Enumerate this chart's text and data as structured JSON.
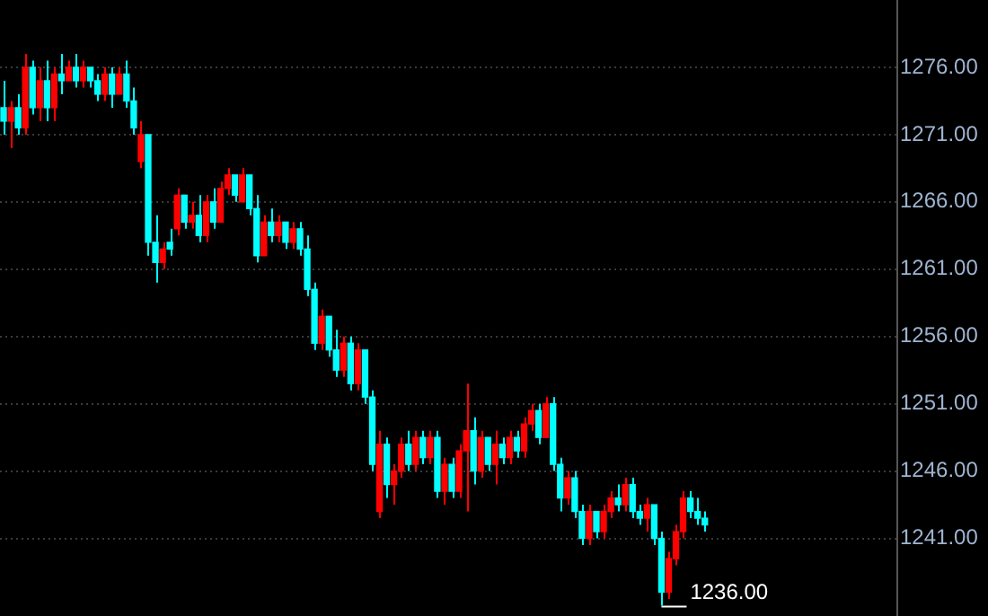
{
  "chart_data": {
    "type": "candlestick",
    "categories": [
      null,
      null,
      null,
      null,
      null,
      null,
      null,
      null,
      null,
      null,
      null,
      null,
      null,
      null,
      null,
      null,
      null,
      null,
      null,
      null,
      null,
      null,
      null,
      null,
      null,
      null,
      null,
      null,
      null,
      null,
      null,
      null,
      null,
      null,
      null,
      null,
      null,
      null,
      null,
      null,
      null,
      null,
      null,
      null,
      null,
      null,
      null,
      null,
      null,
      null,
      null,
      null,
      null,
      null,
      null,
      null,
      null,
      null,
      null,
      null,
      null,
      null,
      null,
      null,
      null,
      null,
      null,
      null,
      null,
      null,
      null,
      null,
      null,
      null,
      null,
      null,
      null,
      null,
      null,
      null,
      null,
      null,
      null,
      null,
      null,
      null,
      null,
      null,
      null,
      null,
      null,
      null,
      null,
      null,
      null,
      null,
      null,
      null,
      null,
      null,
      null,
      null,
      null,
      null,
      null,
      null,
      null,
      null,
      null,
      null,
      null,
      null,
      null,
      null,
      null,
      null,
      null,
      null,
      null,
      null,
      null,
      null,
      null,
      null
    ],
    "ohlc": [
      [
        1273,
        1275,
        1271,
        1272
      ],
      [
        1272,
        1273.5,
        1270,
        1273
      ],
      [
        1273,
        1274,
        1271,
        1271.5
      ],
      [
        1271.5,
        1277,
        1271,
        1276
      ],
      [
        1276,
        1276.5,
        1272.5,
        1273
      ],
      [
        1273,
        1276,
        1272,
        1275
      ],
      [
        1275,
        1276.5,
        1272,
        1273
      ],
      [
        1273,
        1276,
        1272,
        1275.5
      ],
      [
        1275.5,
        1277,
        1274,
        1275
      ],
      [
        1275,
        1276.5,
        1275,
        1276
      ],
      [
        1276,
        1277,
        1274.5,
        1275
      ],
      [
        1275,
        1276.5,
        1274.5,
        1276
      ],
      [
        1276,
        1276,
        1274.5,
        1275
      ],
      [
        1275,
        1275.5,
        1273.5,
        1274
      ],
      [
        1274,
        1276,
        1273.5,
        1275.5
      ],
      [
        1275.5,
        1276,
        1273,
        1274
      ],
      [
        1274,
        1276,
        1274,
        1275.5
      ],
      [
        1275.5,
        1276.5,
        1273,
        1273.5
      ],
      [
        1273.5,
        1274.5,
        1271,
        1271.5
      ],
      [
        1269,
        1272,
        1268.5,
        1271
      ],
      [
        1271,
        1271,
        1262,
        1263
      ],
      [
        1263,
        1265,
        1260,
        1261.5
      ],
      [
        1261.5,
        1263,
        1261,
        1262.5
      ],
      [
        1263,
        1264,
        1262,
        1262.5
      ],
      [
        1264,
        1267,
        1263.5,
        1266.5
      ],
      [
        1266.5,
        1266.5,
        1264,
        1264.5
      ],
      [
        1264.5,
        1266,
        1264,
        1265
      ],
      [
        1265,
        1266.5,
        1263,
        1263.5
      ],
      [
        1263.5,
        1266.5,
        1263,
        1266
      ],
      [
        1266,
        1267,
        1264,
        1264.5
      ],
      [
        1264.5,
        1267.5,
        1264.5,
        1267
      ],
      [
        1267,
        1268.5,
        1266.5,
        1268
      ],
      [
        1268,
        1268,
        1266,
        1266.5
      ],
      [
        1266,
        1268.5,
        1266,
        1268
      ],
      [
        1268,
        1268,
        1265,
        1265.5
      ],
      [
        1265.5,
        1266.5,
        1261.5,
        1262
      ],
      [
        1262,
        1265,
        1262,
        1264.5
      ],
      [
        1264.5,
        1265.5,
        1263,
        1263.5
      ],
      [
        1263.5,
        1265,
        1263,
        1264.5
      ],
      [
        1264.5,
        1264.5,
        1262.5,
        1263
      ],
      [
        1263,
        1264.5,
        1262.5,
        1264
      ],
      [
        1264,
        1264.5,
        1262,
        1262.5
      ],
      [
        1262.5,
        1263.5,
        1259,
        1259.5
      ],
      [
        1259.5,
        1260,
        1255,
        1255.5
      ],
      [
        1255.5,
        1258,
        1255,
        1257.5
      ],
      [
        1257.5,
        1257.5,
        1254.5,
        1255
      ],
      [
        1255,
        1256.5,
        1253,
        1253.5
      ],
      [
        1253.5,
        1256,
        1253,
        1255.5
      ],
      [
        1255.5,
        1256,
        1252,
        1252.5
      ],
      [
        1252.5,
        1255.5,
        1252,
        1255
      ],
      [
        1255,
        1255,
        1251,
        1251.5
      ],
      [
        1251.5,
        1252,
        1246,
        1246.5
      ],
      [
        1243,
        1249,
        1242.5,
        1248
      ],
      [
        1248,
        1248.5,
        1244,
        1245
      ],
      [
        1245,
        1246.5,
        1243.5,
        1246
      ],
      [
        1246,
        1248.5,
        1245.5,
        1248
      ],
      [
        1248,
        1249,
        1246,
        1246.5
      ],
      [
        1246.5,
        1249,
        1246,
        1248.5
      ],
      [
        1248.5,
        1249,
        1246.5,
        1247
      ],
      [
        1247,
        1249,
        1246.5,
        1248.5
      ],
      [
        1248.5,
        1249,
        1244,
        1244.5
      ],
      [
        1244.5,
        1247,
        1243.5,
        1246.5
      ],
      [
        1246.5,
        1247,
        1244,
        1244.5
      ],
      [
        1244.5,
        1248,
        1244,
        1247.5
      ],
      [
        1247.5,
        1252.5,
        1243,
        1249
      ],
      [
        1249,
        1250,
        1245,
        1246
      ],
      [
        1246,
        1249,
        1245.5,
        1248.5
      ],
      [
        1248.5,
        1248.5,
        1246,
        1246.5
      ],
      [
        1246.5,
        1249,
        1245,
        1248
      ],
      [
        1248,
        1248.5,
        1246.5,
        1247
      ],
      [
        1247,
        1249,
        1246.5,
        1248.5
      ],
      [
        1248.5,
        1249,
        1247,
        1247.5
      ],
      [
        1247.5,
        1250,
        1247,
        1249.5
      ],
      [
        1249.5,
        1251,
        1249,
        1250.5
      ],
      [
        1250.5,
        1251,
        1248,
        1248.5
      ],
      [
        1248.5,
        1251.5,
        1248.5,
        1251
      ],
      [
        1251,
        1251.5,
        1246,
        1246.5
      ],
      [
        1246.5,
        1247,
        1243,
        1244
      ],
      [
        1244,
        1246,
        1243.5,
        1245.5
      ],
      [
        1245.5,
        1246,
        1242.5,
        1243
      ],
      [
        1243,
        1243.5,
        1240.5,
        1241
      ],
      [
        1241,
        1243.5,
        1240.5,
        1243
      ],
      [
        1243,
        1243,
        1241,
        1241.5
      ],
      [
        1241.5,
        1243.5,
        1241,
        1243
      ],
      [
        1243,
        1244.5,
        1242.5,
        1244
      ],
      [
        1244,
        1245,
        1243,
        1243.5
      ],
      [
        1243.5,
        1245.5,
        1243,
        1245
      ],
      [
        1245,
        1245.5,
        1242.5,
        1243
      ],
      [
        1243,
        1243.5,
        1242,
        1242.5
      ],
      [
        1242.5,
        1244,
        1241.5,
        1243.5
      ],
      [
        1243.5,
        1243.5,
        1240.5,
        1241
      ],
      [
        1241,
        1241.5,
        1236,
        1237
      ],
      [
        1237,
        1240,
        1236.5,
        1239.5
      ],
      [
        1239.5,
        1242,
        1239,
        1241.5
      ],
      [
        1241.5,
        1244.5,
        1241,
        1244
      ],
      [
        1244,
        1244.5,
        1242.5,
        1243
      ],
      [
        1243,
        1244,
        1242,
        1242.5
      ],
      [
        1242.5,
        1243,
        1241.5,
        1242
      ],
      null,
      null,
      null,
      null,
      null,
      null,
      null,
      null,
      null,
      null,
      null,
      null,
      null,
      null,
      null,
      null,
      null,
      null,
      null,
      null,
      null,
      null,
      null,
      null,
      null,
      null
    ],
    "colors": [
      "#00ffff",
      "#ff0000",
      "#00ffff",
      "#ff0000",
      "#00ffff",
      "#ff0000",
      "#00ffff",
      "#ff0000",
      "#00ffff",
      "#ff0000",
      "#00ffff",
      "#ff0000",
      "#00ffff",
      "#00ffff",
      "#ff0000",
      "#00ffff",
      "#ff0000",
      "#00ffff",
      "#00ffff",
      "#ff0000",
      "#00ffff",
      "#00ffff",
      "#ff0000",
      "#00ffff",
      "#ff0000",
      "#00ffff",
      "#ff0000",
      "#00ffff",
      "#ff0000",
      "#00ffff",
      "#ff0000",
      "#ff0000",
      "#00ffff",
      "#ff0000",
      "#00ffff",
      "#00ffff",
      "#ff0000",
      "#00ffff",
      "#ff0000",
      "#00ffff",
      "#ff0000",
      "#00ffff",
      "#00ffff",
      "#00ffff",
      "#ff0000",
      "#00ffff",
      "#00ffff",
      "#ff0000",
      "#00ffff",
      "#ff0000",
      "#00ffff",
      "#00ffff",
      "#ff0000",
      "#00ffff",
      "#ff0000",
      "#ff0000",
      "#00ffff",
      "#ff0000",
      "#00ffff",
      "#ff0000",
      "#00ffff",
      "#ff0000",
      "#00ffff",
      "#ff0000",
      "#ff0000",
      "#00ffff",
      "#ff0000",
      "#00ffff",
      "#ff0000",
      "#00ffff",
      "#ff0000",
      "#00ffff",
      "#ff0000",
      "#ff0000",
      "#00ffff",
      "#ff0000",
      "#00ffff",
      "#00ffff",
      "#ff0000",
      "#00ffff",
      "#00ffff",
      "#ff0000",
      "#00ffff",
      "#ff0000",
      "#ff0000",
      "#00ffff",
      "#ff0000",
      "#00ffff",
      "#00ffff",
      "#ff0000",
      "#00ffff",
      "#00ffff",
      "#ff0000",
      "#ff0000",
      "#ff0000",
      "#00ffff",
      "#00ffff",
      "#00ffff",
      null,
      null,
      null,
      null,
      null,
      null,
      null,
      null,
      null,
      null,
      null,
      null,
      null,
      null,
      null,
      null,
      null,
      null,
      null,
      null,
      null,
      null,
      null,
      null,
      null,
      null
    ],
    "ylim": [
      1235.5,
      1281
    ],
    "yticks": [
      {
        "value": 1241,
        "label": "1241.00"
      },
      {
        "value": 1246,
        "label": "1246.00"
      },
      {
        "value": 1251,
        "label": "1251.00"
      },
      {
        "value": 1256,
        "label": "1256.00"
      },
      {
        "value": 1261,
        "label": "1261.00"
      },
      {
        "value": 1266,
        "label": "1266.00"
      },
      {
        "value": 1271,
        "label": "1271.00"
      },
      {
        "value": 1276,
        "label": "1276.00"
      }
    ],
    "tick_labels": "y",
    "grid": "y",
    "legend": false,
    "annotations": [
      "1236.00"
    ]
  }
}
